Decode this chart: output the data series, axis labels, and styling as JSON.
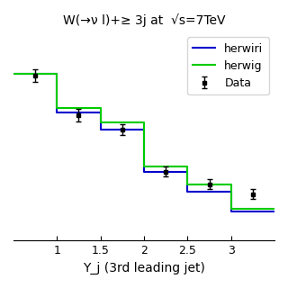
{
  "title": "W(→ν l)+≥ 3j at  √s=7TeV",
  "xlabel": "Y_j (3rd leading jet)",
  "bin_edges": [
    0.5,
    1.0,
    1.5,
    2.0,
    2.5,
    3.0,
    3.5
  ],
  "herwiri_values": [
    0.88,
    0.72,
    0.65,
    0.48,
    0.4,
    0.32
  ],
  "herwig_values": [
    0.88,
    0.74,
    0.68,
    0.5,
    0.43,
    0.33
  ],
  "data_x": [
    0.75,
    1.25,
    1.75,
    2.25,
    2.75,
    3.25
  ],
  "data_y": [
    0.87,
    0.71,
    0.65,
    0.48,
    0.43,
    0.39
  ],
  "data_yerr": [
    0.025,
    0.025,
    0.022,
    0.02,
    0.02,
    0.02
  ],
  "herwiri_color": "#0000cc",
  "herwig_color": "#00cc00",
  "data_color": "black",
  "xlim": [
    0.5,
    3.5
  ],
  "ylim": [
    0.2,
    1.05
  ],
  "xticks": [
    1.0,
    1.5,
    2.0,
    2.5,
    3.0
  ],
  "xtick_labels": [
    "1",
    "1.5",
    "2",
    "2.5",
    "3"
  ],
  "legend_loc": "upper right",
  "title_fontsize": 10,
  "label_fontsize": 10,
  "tick_fontsize": 9
}
